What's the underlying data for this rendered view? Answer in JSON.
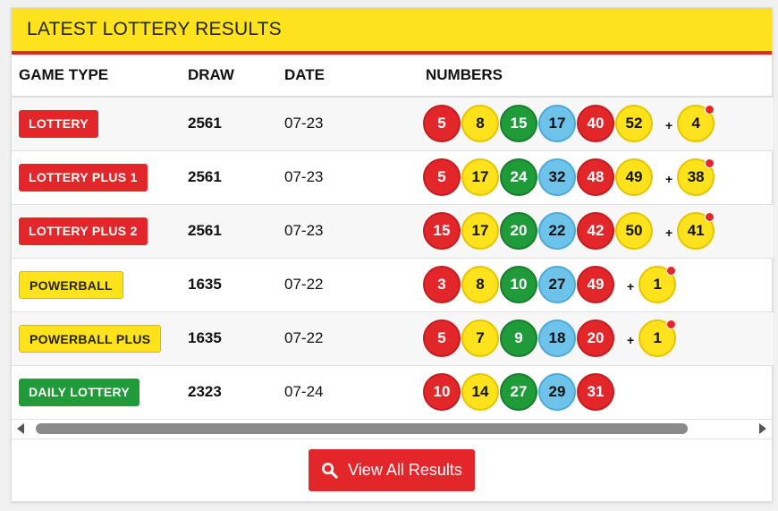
{
  "header": {
    "title": "LATEST LOTTERY RESULTS"
  },
  "columns": {
    "game_type": "GAME TYPE",
    "draw": "DRAW",
    "date": "DATE",
    "numbers": "NUMBERS"
  },
  "colors": {
    "red": "#e3262a",
    "yellow": "#fde21c",
    "green": "#1f9b3a",
    "blue": "#6ec3ea"
  },
  "plus_sign": "+",
  "rows": [
    {
      "game": "LOTTERY",
      "badge_color": "red",
      "draw": "2561",
      "date": "07-23",
      "balls": [
        {
          "n": "5",
          "c": "red"
        },
        {
          "n": "8",
          "c": "yellow"
        },
        {
          "n": "15",
          "c": "green"
        },
        {
          "n": "17",
          "c": "blue"
        },
        {
          "n": "40",
          "c": "red"
        },
        {
          "n": "52",
          "c": "yellow"
        }
      ],
      "bonus": "4"
    },
    {
      "game": "LOTTERY PLUS 1",
      "badge_color": "red",
      "draw": "2561",
      "date": "07-23",
      "balls": [
        {
          "n": "5",
          "c": "red"
        },
        {
          "n": "17",
          "c": "yellow"
        },
        {
          "n": "24",
          "c": "green"
        },
        {
          "n": "32",
          "c": "blue"
        },
        {
          "n": "48",
          "c": "red"
        },
        {
          "n": "49",
          "c": "yellow"
        }
      ],
      "bonus": "38"
    },
    {
      "game": "LOTTERY PLUS 2",
      "badge_color": "red",
      "draw": "2561",
      "date": "07-23",
      "balls": [
        {
          "n": "15",
          "c": "red"
        },
        {
          "n": "17",
          "c": "yellow"
        },
        {
          "n": "20",
          "c": "green"
        },
        {
          "n": "22",
          "c": "blue"
        },
        {
          "n": "42",
          "c": "red"
        },
        {
          "n": "50",
          "c": "yellow"
        }
      ],
      "bonus": "41"
    },
    {
      "game": "POWERBALL",
      "badge_color": "yellow",
      "draw": "1635",
      "date": "07-22",
      "balls": [
        {
          "n": "3",
          "c": "red"
        },
        {
          "n": "8",
          "c": "yellow"
        },
        {
          "n": "10",
          "c": "green"
        },
        {
          "n": "27",
          "c": "blue"
        },
        {
          "n": "49",
          "c": "red"
        }
      ],
      "bonus": "1"
    },
    {
      "game": "POWERBALL PLUS",
      "badge_color": "yellow",
      "draw": "1635",
      "date": "07-22",
      "balls": [
        {
          "n": "5",
          "c": "red"
        },
        {
          "n": "7",
          "c": "yellow"
        },
        {
          "n": "9",
          "c": "green"
        },
        {
          "n": "18",
          "c": "blue"
        },
        {
          "n": "20",
          "c": "red"
        }
      ],
      "bonus": "1"
    },
    {
      "game": "DAILY LOTTERY",
      "badge_color": "green",
      "draw": "2323",
      "date": "07-24",
      "balls": [
        {
          "n": "10",
          "c": "red"
        },
        {
          "n": "14",
          "c": "yellow"
        },
        {
          "n": "27",
          "c": "green"
        },
        {
          "n": "29",
          "c": "blue"
        },
        {
          "n": "31",
          "c": "red"
        }
      ],
      "bonus": null
    }
  ],
  "footer": {
    "button_label": "View All Results",
    "button_icon": "search-icon"
  }
}
